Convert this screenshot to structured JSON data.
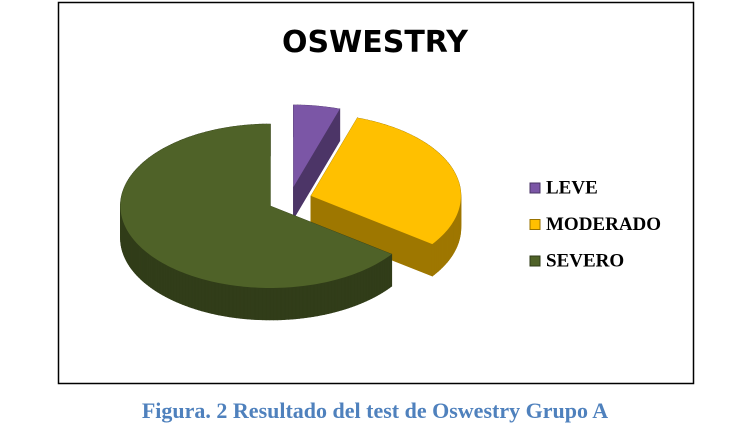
{
  "chart_data": {
    "type": "pie",
    "title": "OSWESTRY",
    "series": [
      {
        "name": "LEVE",
        "color": "#7b56a6",
        "values": [
          5
        ]
      },
      {
        "name": "MODERADO",
        "color": "#ffc000",
        "values": [
          30
        ]
      },
      {
        "name": "SEVERO",
        "color": "#4f6228",
        "values": [
          65
        ]
      }
    ],
    "legend": "right"
  },
  "caption": "Figura. 2 Resultado del test de Oswestry Grupo A"
}
